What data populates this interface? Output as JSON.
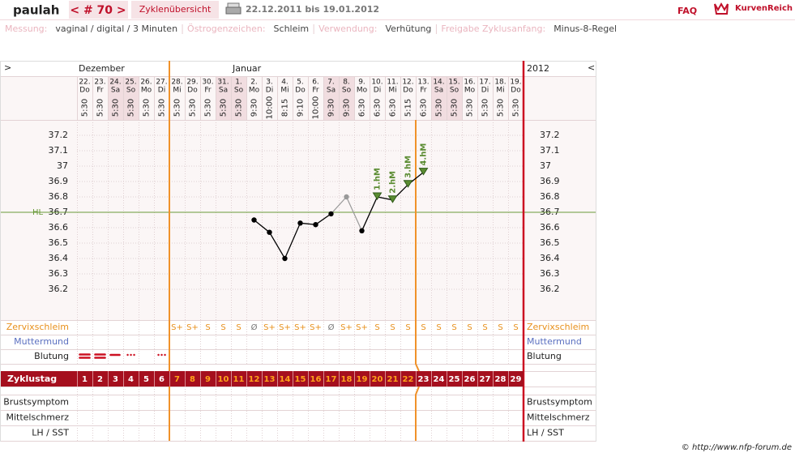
{
  "header": {
    "user": "paulah",
    "cycle_nav": "< # 70 >",
    "overview": "Zyklenübersicht",
    "period": "22.12.2011 bis 19.01.2012",
    "faq": "FAQ",
    "logo": "KurvenReich"
  },
  "info": [
    {
      "label": "Messung:",
      "value": "vaginal / digital / 3 Minuten"
    },
    {
      "label": "Östrogenzeichen:",
      "value": "Schleim"
    },
    {
      "label": "Verwendung:",
      "value": "Verhütung"
    },
    {
      "label": "Freigabe Zyklusanfang:",
      "value": "Minus-8-Regel"
    }
  ],
  "footer": "© http://www.nfp-forum.de",
  "chart_data": {
    "type": "line",
    "nav_left": ">",
    "nav_right": "<",
    "year": "2012",
    "month_labels": [
      "Dezember",
      null,
      null,
      null,
      null,
      null,
      null,
      null,
      null,
      null,
      "Januar",
      null,
      null,
      null,
      null,
      null,
      null,
      null,
      null,
      null,
      null,
      null,
      null,
      null,
      null,
      null,
      null,
      null,
      null
    ],
    "dates": [
      "22.",
      "23.",
      "24.",
      "25.",
      "26.",
      "27.",
      "28.",
      "29.",
      "30.",
      "31.",
      "1.",
      "2.",
      "3.",
      "4.",
      "5.",
      "6.",
      "7.",
      "8.",
      "9.",
      "10.",
      "11.",
      "12.",
      "13.",
      "14.",
      "15.",
      "16.",
      "17.",
      "18.",
      "19."
    ],
    "weekdays": [
      "Do",
      "Fr",
      "Sa",
      "So",
      "Mo",
      "Di",
      "Mi",
      "Do",
      "Fr",
      "Sa",
      "So",
      "Mo",
      "Di",
      "Mi",
      "Do",
      "Fr",
      "Sa",
      "So",
      "Mo",
      "Di",
      "Mi",
      "Do",
      "Fr",
      "Sa",
      "So",
      "Mo",
      "Di",
      "Mi",
      "Do"
    ],
    "times": [
      "5:30",
      "5:30",
      "5:30",
      "5:30",
      "5:30",
      "5:30",
      "5:30",
      "5:30",
      "5:30",
      "5:30",
      "5:30",
      "9:30",
      "10:00",
      "8:15",
      "9:10",
      "10:00",
      "9:30",
      "9:30",
      "6:30",
      "6:30",
      "6:30",
      "5:15",
      "6:30",
      "5:30",
      "5:30",
      "5:30",
      "5:30",
      "5:30",
      "5:30"
    ],
    "ylim": [
      36.0,
      37.3
    ],
    "yticks": [
      37.2,
      37.1,
      37,
      36.9,
      36.8,
      36.7,
      36.6,
      36.5,
      36.4,
      36.3,
      36.2
    ],
    "grid": true,
    "hl_label": "HL",
    "hl_value": 36.7,
    "hl_color": "#6a9a3a",
    "series": [
      {
        "color": "#000000",
        "values": [
          null,
          null,
          null,
          null,
          null,
          null,
          null,
          null,
          null,
          null,
          null,
          36.65,
          36.57,
          36.4,
          36.63,
          36.62,
          36.69,
          null,
          36.58,
          36.8,
          36.78,
          36.88,
          36.96,
          null,
          null,
          null,
          null,
          null,
          null
        ]
      },
      {
        "color": "#999999",
        "values": [
          null,
          null,
          null,
          null,
          null,
          null,
          null,
          null,
          null,
          null,
          null,
          null,
          null,
          null,
          null,
          null,
          null,
          36.8,
          null,
          null,
          null,
          null,
          null,
          null,
          null,
          null,
          null,
          null,
          null
        ]
      }
    ],
    "hm_color": "#5b8c32",
    "hm_labels": [
      null,
      null,
      null,
      null,
      null,
      null,
      null,
      null,
      null,
      null,
      null,
      null,
      null,
      null,
      null,
      null,
      null,
      null,
      null,
      "1.hM",
      "2.hM",
      "3.hM",
      "4.hM",
      null,
      null,
      null,
      null,
      null,
      null
    ],
    "zervixschleim": {
      "label": "Zervixschleim",
      "color": "#e8901c",
      "values": [
        null,
        null,
        null,
        null,
        null,
        null,
        "S+",
        "S+",
        "S",
        "S",
        "S",
        "Ø",
        "S+",
        "S+",
        "S+",
        "S+",
        "Ø",
        "S+",
        "S+",
        "S",
        "S",
        "S",
        "S",
        "S",
        "S",
        "S",
        "S",
        "S",
        "S"
      ]
    },
    "muttermund": {
      "label": "Muttermund",
      "color": "#5a6fc0"
    },
    "blutung": {
      "label": "Blutung",
      "color": "#cc1122",
      "values": [
        3,
        3,
        2,
        1,
        null,
        1,
        null,
        null,
        null,
        null,
        null,
        null,
        null,
        null,
        null,
        null,
        null,
        null,
        null,
        null,
        null,
        null,
        null,
        null,
        null,
        null,
        null,
        null,
        null
      ]
    },
    "zyklustag": {
      "label": "Zyklustag",
      "values": [
        "1",
        "2",
        "3",
        "4",
        "5",
        "6",
        "7",
        "8",
        "9",
        "10",
        "11",
        "12",
        "13",
        "14",
        "15",
        "16",
        "17",
        "18",
        "19",
        "20",
        "21",
        "22",
        "23",
        "24",
        "25",
        "26",
        "27",
        "28",
        "29"
      ]
    },
    "symptoms": [
      "Brustsymptom",
      "Mittelschmerz",
      "LH / SST"
    ]
  }
}
